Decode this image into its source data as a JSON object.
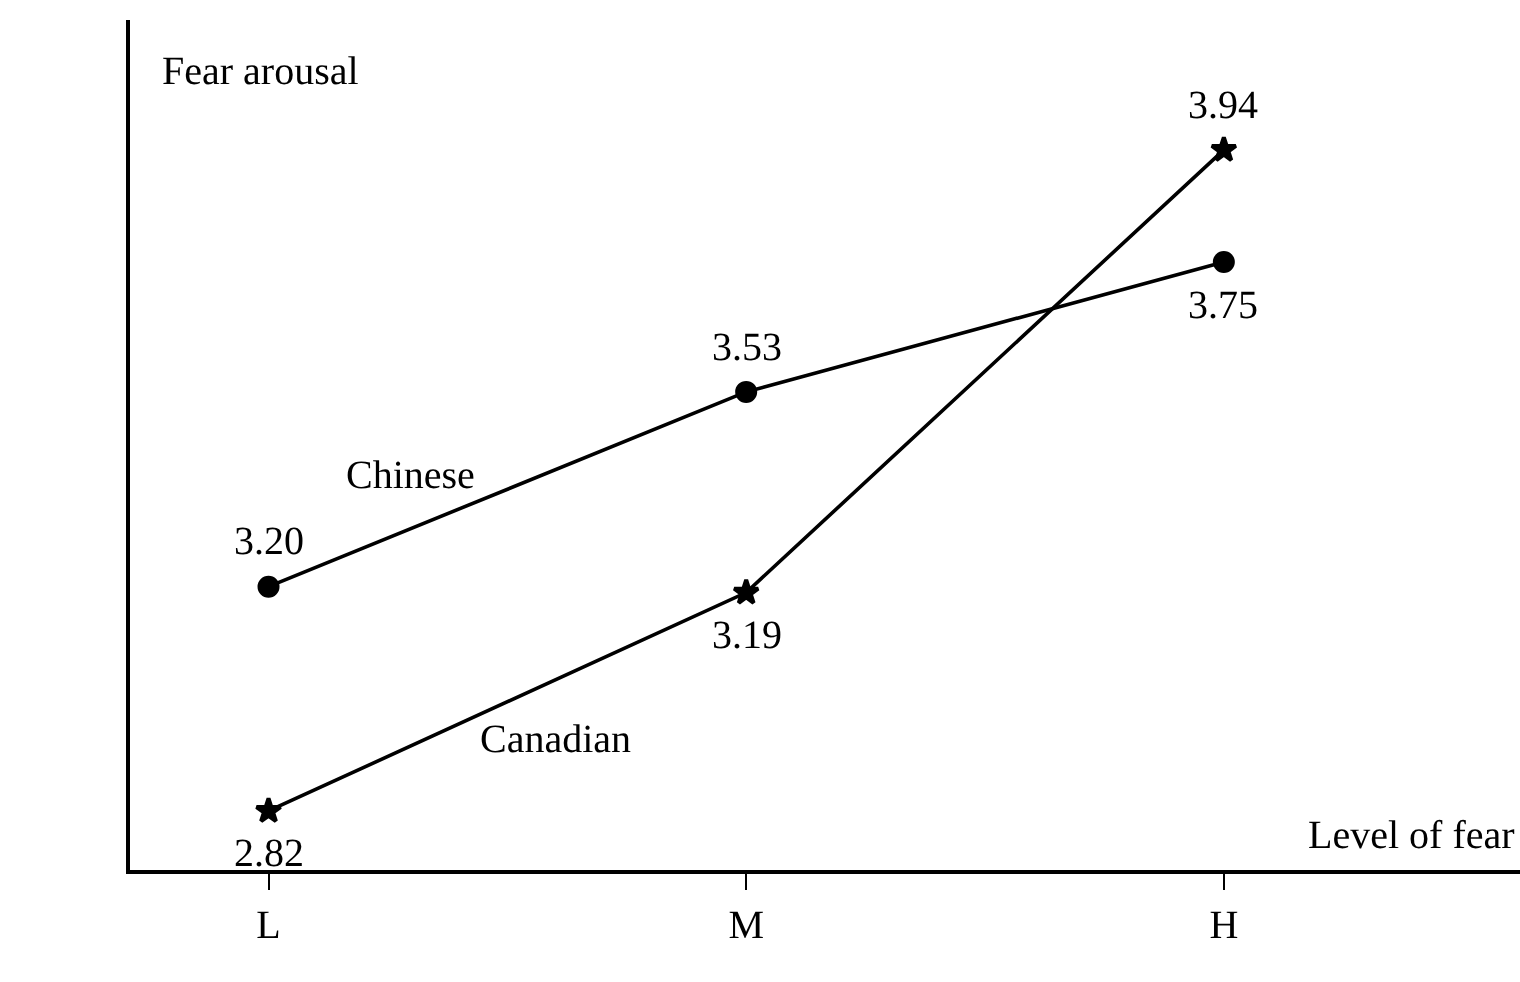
{
  "chart_data": {
    "type": "line",
    "xlabel": "Level of fear",
    "ylabel": "Fear arousal",
    "categories": [
      "L",
      "M",
      "H"
    ],
    "series": [
      {
        "name": "Chinese",
        "color": "#000000",
        "marker": "circle",
        "values": [
          3.2,
          3.53,
          3.75
        ],
        "value_labels": [
          "3.20",
          "3.53",
          "3.75"
        ]
      },
      {
        "name": "Canadian",
        "color": "#000000",
        "marker": "star",
        "values": [
          2.82,
          3.19,
          3.94
        ],
        "value_labels": [
          "2.82",
          "3.19",
          "3.94"
        ]
      }
    ],
    "ylim": [
      2.72,
      4.16
    ],
    "tick_labels": "x",
    "legend": false,
    "line_style": "solid"
  }
}
